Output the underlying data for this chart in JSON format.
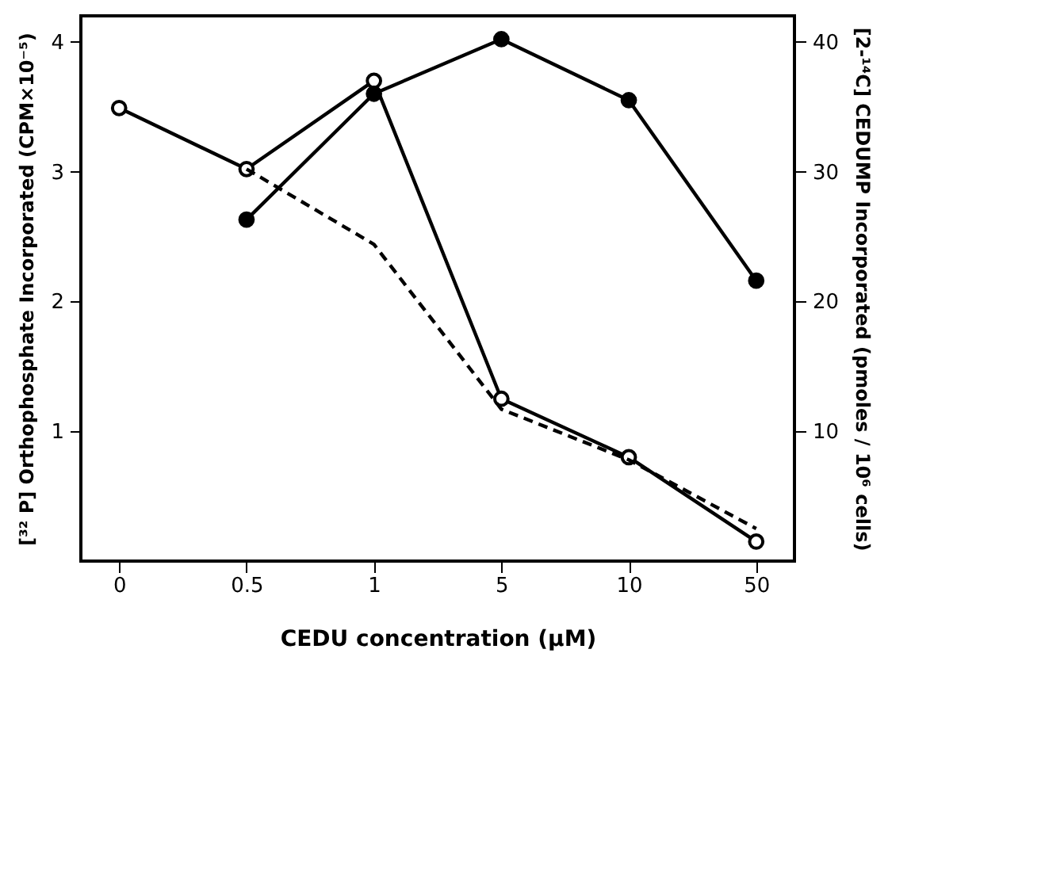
{
  "chart_data": {
    "type": "line",
    "xlabel": "CEDU concentration (μM)",
    "ylabel": "[³² P] Orthophosphate Incorporated (CPM×10⁻⁵)",
    "y2label": "[2-¹⁴C] CEDUMP Incorporated (pmoles / 10⁶ cells)",
    "categories": [
      "0",
      "0.5",
      "1",
      "5",
      "10",
      "50"
    ],
    "ylim": [
      0,
      4.2
    ],
    "yticks": [
      1,
      2,
      3,
      4
    ],
    "y2lim": [
      0,
      42
    ],
    "y2ticks": [
      10,
      20,
      30,
      40
    ],
    "grid": false,
    "series": [
      {
        "color": "#000000",
        "marker": "circle",
        "line_style": "solid",
        "values": [
          3.49,
          3.02,
          3.7,
          1.25,
          0.8,
          0.15
        ]
      },
      {
        "color": "#000000",
        "marker": "none",
        "line_style": "dashed",
        "values": [
          null,
          3.02,
          2.44,
          1.17,
          0.78,
          0.25
        ]
      },
      {
        "color": "#000000",
        "marker": "circle",
        "line_style": "solid",
        "axis": "y2",
        "values": [
          null,
          26.3,
          36,
          40.2,
          35.5,
          21.6
        ]
      }
    ]
  }
}
